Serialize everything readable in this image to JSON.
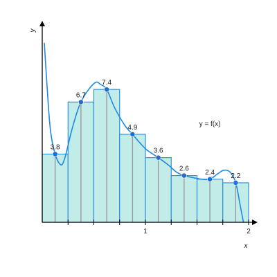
{
  "chart_data": {
    "type": "bar",
    "xlabel": "x",
    "ylabel": "y",
    "function_label": "y = f(x)",
    "xlim": [
      0,
      2
    ],
    "ylim": [
      0,
      10.8
    ],
    "x_ticks": [
      {
        "value": 0.25,
        "label": ""
      },
      {
        "value": 0.5,
        "label": ""
      },
      {
        "value": 0.75,
        "label": ""
      },
      {
        "value": 1,
        "label": "1"
      },
      {
        "value": 1.25,
        "label": ""
      },
      {
        "value": 1.5,
        "label": ""
      },
      {
        "value": 1.75,
        "label": ""
      },
      {
        "value": 2,
        "label": "2"
      }
    ],
    "intervals": [
      {
        "x0": 0,
        "x1": 0.25,
        "sample_x": 0.125,
        "value": 3.8,
        "label": "3.8"
      },
      {
        "x0": 0.25,
        "x1": 0.5,
        "sample_x": 0.375,
        "value": 6.7,
        "label": "6.7"
      },
      {
        "x0": 0.5,
        "x1": 0.75,
        "sample_x": 0.625,
        "value": 7.4,
        "label": "7.4"
      },
      {
        "x0": 0.75,
        "x1": 1,
        "sample_x": 0.875,
        "value": 4.9,
        "label": "4.9"
      },
      {
        "x0": 1,
        "x1": 1.25,
        "sample_x": 1.125,
        "value": 3.6,
        "label": "3.6"
      },
      {
        "x0": 1.25,
        "x1": 1.5,
        "sample_x": 1.375,
        "value": 2.6,
        "label": "2.6"
      },
      {
        "x0": 1.5,
        "x1": 1.75,
        "sample_x": 1.625,
        "value": 2.4,
        "label": "2.4"
      },
      {
        "x0": 1.75,
        "x1": 2,
        "sample_x": 1.875,
        "value": 2.2,
        "label": "2.2"
      }
    ],
    "curve_points": [
      [
        0.02,
        10.0
      ],
      [
        0.05,
        7.3
      ],
      [
        0.08,
        5.1
      ],
      [
        0.125,
        3.8
      ],
      [
        0.18,
        3.2
      ],
      [
        0.22,
        3.6
      ],
      [
        0.28,
        5.0
      ],
      [
        0.33,
        6.0
      ],
      [
        0.375,
        6.7
      ],
      [
        0.45,
        7.4
      ],
      [
        0.52,
        7.8
      ],
      [
        0.56,
        7.7
      ],
      [
        0.625,
        7.4
      ],
      [
        0.7,
        6.4
      ],
      [
        0.8,
        5.4
      ],
      [
        0.875,
        4.9
      ],
      [
        0.95,
        4.4
      ],
      [
        1.02,
        4.0
      ],
      [
        1.125,
        3.6
      ],
      [
        1.22,
        3.2
      ],
      [
        1.3,
        2.8
      ],
      [
        1.375,
        2.6
      ],
      [
        1.45,
        2.5
      ],
      [
        1.55,
        2.4
      ],
      [
        1.625,
        2.4
      ],
      [
        1.7,
        2.7
      ],
      [
        1.76,
        2.9
      ],
      [
        1.82,
        2.8
      ],
      [
        1.875,
        2.2
      ],
      [
        1.92,
        0.9
      ],
      [
        1.95,
        0
      ]
    ],
    "colors": {
      "bar_fill": "#c2ece8",
      "bar_stroke": "#1e88e5",
      "sample_line": "#9a9a9a",
      "curve": "#1e88e5",
      "point": "#1e6fd6",
      "axis": "#000000"
    }
  }
}
